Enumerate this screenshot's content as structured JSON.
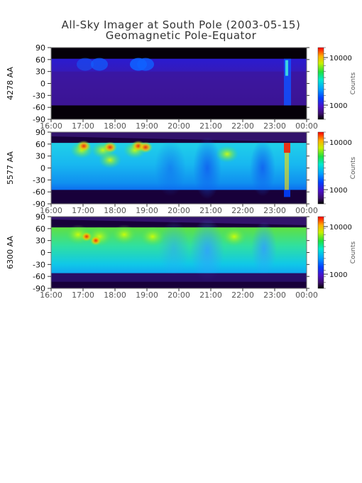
{
  "title": "All-Sky Imager at South Pole (2003-05-15)",
  "subtitle": "Geomagnetic Pole-Equator",
  "chart_data": [
    {
      "type": "heatmap",
      "ylabel": "4278 AA",
      "yticks": [
        90,
        60,
        30,
        0,
        -30,
        -60,
        -90
      ],
      "ylim": [
        -90,
        90
      ],
      "xticks": [
        "16:00",
        "17:00",
        "18:00",
        "19:00",
        "20:00",
        "21:00",
        "22:00",
        "23:00",
        "00:00"
      ],
      "colorbar": {
        "label": "Counts",
        "scale": "log",
        "ticks": [
          1000,
          10000
        ]
      }
    },
    {
      "type": "heatmap",
      "ylabel": "5577 AA",
      "yticks": [
        90,
        60,
        30,
        0,
        -30,
        -60,
        -90
      ],
      "ylim": [
        -90,
        90
      ],
      "xticks": [
        "16:00",
        "17:00",
        "18:00",
        "19:00",
        "20:00",
        "21:00",
        "22:00",
        "23:00",
        "00:00"
      ],
      "colorbar": {
        "label": "Counts",
        "scale": "log",
        "ticks": [
          1000,
          10000
        ]
      }
    },
    {
      "type": "heatmap",
      "ylabel": "6300 AA",
      "yticks": [
        90,
        60,
        30,
        0,
        -30,
        -60,
        -90
      ],
      "ylim": [
        -90,
        90
      ],
      "xticks": [
        "16:00",
        "17:00",
        "18:00",
        "19:00",
        "20:00",
        "21:00",
        "22:00",
        "23:00",
        "00:00"
      ],
      "colorbar": {
        "label": "Counts",
        "scale": "log",
        "ticks": [
          1000,
          10000
        ]
      }
    }
  ]
}
